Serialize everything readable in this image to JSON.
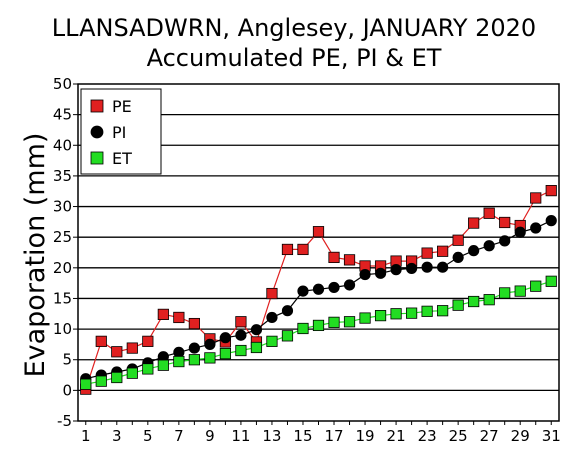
{
  "chart_data": {
    "type": "line",
    "title": "LLANSADWRN, Anglesey, JANUARY 2020",
    "subtitle": "Accumulated PE, PI & ET",
    "xlabel": "",
    "ylabel": "Evaporation (mm)",
    "xlim": [
      1,
      31
    ],
    "ylim": [
      -5,
      50
    ],
    "grid": true,
    "legend_position": "top-left",
    "x_ticks": [
      1,
      3,
      5,
      7,
      9,
      11,
      13,
      15,
      17,
      19,
      21,
      23,
      25,
      27,
      29,
      31
    ],
    "y_ticks": [
      -5,
      0,
      5,
      10,
      15,
      20,
      25,
      30,
      35,
      40,
      45,
      50
    ],
    "x": [
      1,
      2,
      3,
      4,
      5,
      6,
      7,
      8,
      9,
      10,
      11,
      12,
      13,
      14,
      15,
      16,
      17,
      18,
      19,
      20,
      21,
      22,
      23,
      24,
      25,
      26,
      27,
      28,
      29,
      30,
      31
    ],
    "series": [
      {
        "name": "PE",
        "color": "#e02020",
        "marker": "square",
        "values": [
          0.2,
          8.0,
          6.3,
          6.9,
          8.0,
          12.4,
          11.9,
          10.9,
          8.4,
          7.9,
          11.2,
          7.9,
          15.8,
          23.0,
          23.0,
          25.9,
          21.7,
          21.3,
          20.3,
          20.3,
          21.1,
          21.1,
          22.4,
          22.7,
          24.5,
          27.3,
          28.9,
          27.4,
          26.9,
          31.4,
          32.6
        ]
      },
      {
        "name": "PI",
        "color": "#000000",
        "marker": "circle",
        "values": [
          1.9,
          2.5,
          3.0,
          3.5,
          4.5,
          5.5,
          6.2,
          6.9,
          7.5,
          8.6,
          9.0,
          9.9,
          11.9,
          13.0,
          16.2,
          16.5,
          16.8,
          17.2,
          18.9,
          19.1,
          19.7,
          19.9,
          20.1,
          20.1,
          21.7,
          22.8,
          23.6,
          24.4,
          25.8,
          26.5,
          27.7
        ]
      },
      {
        "name": "ET",
        "color": "#22dd22",
        "marker": "square",
        "values": [
          1.0,
          1.5,
          2.1,
          2.8,
          3.5,
          4.1,
          4.7,
          5.0,
          5.3,
          6.0,
          6.5,
          7.0,
          8.0,
          8.9,
          10.1,
          10.6,
          11.1,
          11.2,
          11.8,
          12.2,
          12.5,
          12.6,
          12.9,
          13.0,
          13.9,
          14.5,
          14.8,
          15.9,
          16.2,
          17.0,
          17.8
        ]
      }
    ]
  }
}
